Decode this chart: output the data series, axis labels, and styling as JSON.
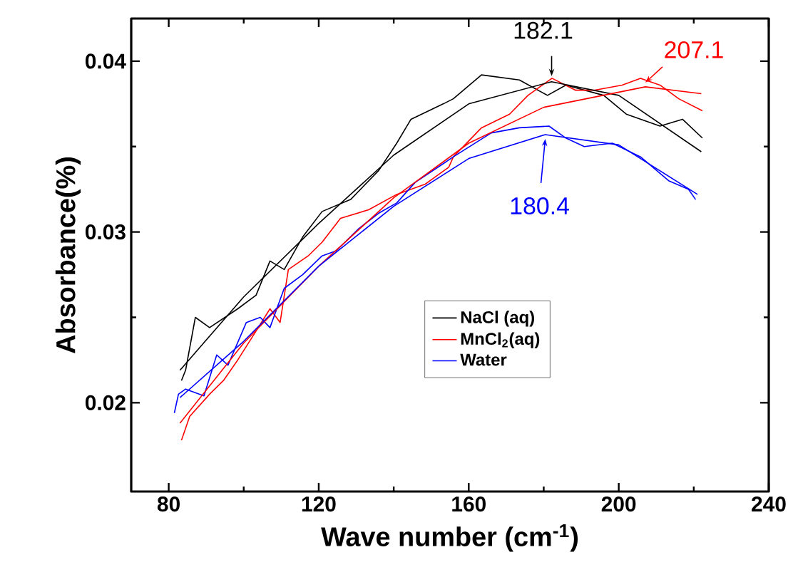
{
  "chart_data": {
    "type": "line",
    "xlabel": "Wave number (cm$^{-1}$)",
    "ylabel": "Absorbance(%)",
    "xlim": [
      70,
      240
    ],
    "ylim": [
      0.0148,
      0.0425
    ],
    "xticks": [
      80,
      {
        "value": 100,
        "label": null
      },
      120,
      {
        "value": 140,
        "label": null
      },
      160,
      {
        "value": 180,
        "label": null
      },
      200,
      {
        "value": 220,
        "label": null
      },
      240
    ],
    "yticks": [
      0.02,
      {
        "value": 0.025,
        "label": null
      },
      0.03,
      {
        "value": 0.035,
        "label": null
      },
      0.04
    ],
    "legend": "right",
    "marker": "none",
    "line_style": "solid",
    "annotations": [
      {
        "text": "182.1",
        "x": 182.1,
        "y": 0.0388
      },
      {
        "text": "207.1",
        "x": 207.1,
        "y": 0.0385
      },
      {
        "text": "180.4",
        "x": 180.4,
        "y": 0.0357
      }
    ],
    "series": [
      {
        "name": "NaCl (aq)",
        "color": "#000000",
        "x": [
          83.4,
          84.5,
          87.1,
          90.9,
          98.4,
          103.3,
          107,
          110.8,
          115.7,
          120.9,
          128.5,
          136,
          140.8,
          144.6,
          153.2,
          155.9,
          163.4,
          173.5,
          181,
          185.9,
          196,
          202,
          211,
          217,
          222.3
        ],
        "values": [
          0.0213,
          0.0219,
          0.025,
          0.0244,
          0.0255,
          0.0263,
          0.0283,
          0.0278,
          0.0297,
          0.0312,
          0.0319,
          0.0336,
          0.0352,
          0.0366,
          0.0375,
          0.0378,
          0.0392,
          0.0389,
          0.038,
          0.0386,
          0.038,
          0.0369,
          0.0362,
          0.0366,
          0.0355
        ]
      },
      {
        "name": "MnCl$_{2}$(aq)",
        "color": "#ff0000",
        "x": [
          83.4,
          85.6,
          90.9,
          94.6,
          98.4,
          103.3,
          107,
          109.7,
          111.9,
          117.2,
          120.9,
          125.8,
          133.3,
          140.8,
          148.4,
          154.7,
          155.9,
          163.4,
          170.9,
          175.8,
          182.2,
          188.5,
          193.4,
          200.9,
          205.8,
          211,
          216,
          222.3
        ],
        "values": [
          0.0178,
          0.0192,
          0.0205,
          0.0213,
          0.0225,
          0.0242,
          0.0255,
          0.0247,
          0.0278,
          0.0286,
          0.0294,
          0.0308,
          0.0313,
          0.0322,
          0.0328,
          0.0338,
          0.0344,
          0.0361,
          0.0369,
          0.038,
          0.039,
          0.0383,
          0.0383,
          0.0386,
          0.039,
          0.0386,
          0.0378,
          0.0371
        ]
      },
      {
        "name": "Water",
        "color": "#0000ff",
        "x": [
          81.5,
          82.6,
          84.5,
          89.4,
          92.8,
          95.8,
          100.7,
          104.4,
          107,
          110.8,
          115.7,
          120.9,
          124.7,
          130.7,
          136,
          140.8,
          145.7,
          153.2,
          155.9,
          166,
          173.5,
          181.4,
          185.9,
          190.8,
          198.3,
          205.8,
          213.3,
          218.6,
          220.5
        ],
        "values": [
          0.0194,
          0.0205,
          0.0208,
          0.0204,
          0.0228,
          0.0222,
          0.0247,
          0.025,
          0.0244,
          0.0267,
          0.0275,
          0.0286,
          0.0289,
          0.0302,
          0.0311,
          0.0317,
          0.0329,
          0.034,
          0.0344,
          0.0358,
          0.0361,
          0.0362,
          0.0355,
          0.035,
          0.0352,
          0.0344,
          0.033,
          0.0325,
          0.0319
        ]
      },
      {
        "color": "#000000",
        "x": [
          83,
          100,
          120,
          140,
          160,
          182.1,
          200,
          222
        ],
        "values": [
          0.0219,
          0.0262,
          0.0305,
          0.0345,
          0.0375,
          0.0388,
          0.038,
          0.0347
        ]
      },
      {
        "color": "#ff0000",
        "x": [
          83,
          100,
          120,
          140,
          160,
          180,
          207.1,
          222
        ],
        "values": [
          0.0188,
          0.0235,
          0.028,
          0.032,
          0.0352,
          0.0373,
          0.0385,
          0.0381
        ]
      },
      {
        "color": "#0000ff",
        "x": [
          83,
          100,
          120,
          140,
          160,
          180.4,
          200,
          221
        ],
        "values": [
          0.0203,
          0.0236,
          0.028,
          0.0315,
          0.0343,
          0.0357,
          0.0351,
          0.0322
        ]
      }
    ]
  }
}
